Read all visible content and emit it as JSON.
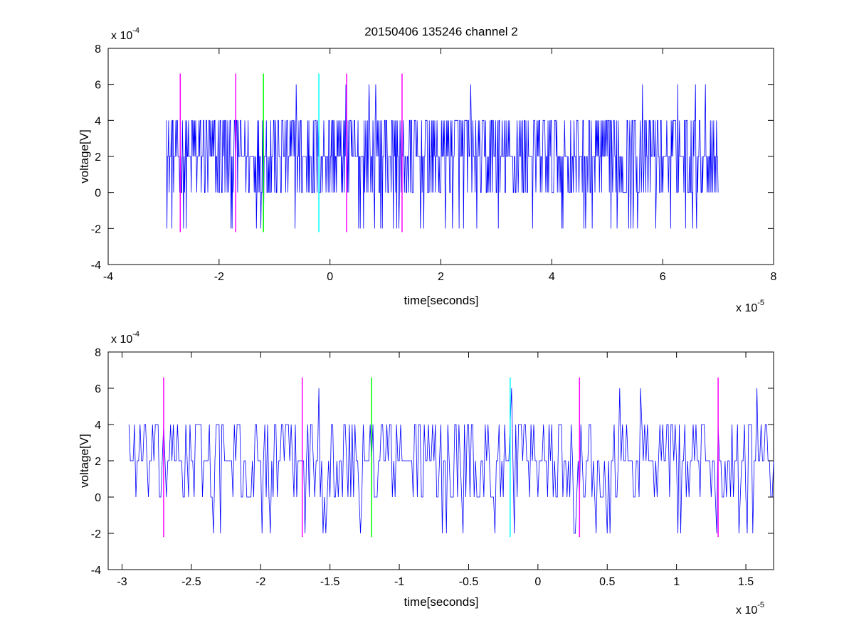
{
  "chart_data": [
    {
      "type": "line",
      "title": "20150406 135246 channel 2",
      "xlabel": "time[seconds]",
      "ylabel": "voltage[V]",
      "xlim": [
        -4e-05,
        8e-05
      ],
      "ylim": [
        -0.0004,
        0.0008
      ],
      "x_ticks": [
        -4e-05,
        -2e-05,
        0,
        2e-05,
        4e-05,
        6e-05,
        8e-05
      ],
      "x_tick_labels": [
        "-4",
        "-2",
        "0",
        "2",
        "4",
        "6",
        "8"
      ],
      "y_ticks": [
        -0.0004,
        -0.0002,
        0,
        0.0002,
        0.0004,
        0.0006,
        0.0008
      ],
      "y_tick_labels": [
        "-4",
        "-2",
        "0",
        "2",
        "4",
        "6",
        "8"
      ],
      "x_exponent_label": "x 10",
      "x_exponent": "-5",
      "y_exponent_label": "x 10",
      "y_exponent": "-4",
      "grid": false,
      "series": [
        {
          "color": "#0000ff",
          "x_range": [
            -2.95e-05,
            7e-05
          ],
          "quantization_step": 0.0002,
          "dominant_values": [
            0,
            0.0002,
            0.0004
          ],
          "occasional_values": [
            -0.0002,
            0.0006
          ],
          "samples": 1000
        }
      ],
      "markers": [
        {
          "x": -2.7e-05,
          "color": "#ff00ff",
          "y_range": [
            -0.00022,
            0.00066
          ]
        },
        {
          "x": -1.7e-05,
          "color": "#ff00ff",
          "y_range": [
            -0.00022,
            0.00066
          ]
        },
        {
          "x": -1.2e-05,
          "color": "#00ff00",
          "y_range": [
            -0.00022,
            0.00066
          ]
        },
        {
          "x": -2e-06,
          "color": "#00ffff",
          "y_range": [
            -0.00022,
            0.00066
          ]
        },
        {
          "x": 3e-06,
          "color": "#ff00ff",
          "y_range": [
            -0.00022,
            0.00066
          ]
        },
        {
          "x": 1.3e-05,
          "color": "#ff00ff",
          "y_range": [
            -0.00022,
            0.00066
          ]
        }
      ]
    },
    {
      "type": "line",
      "xlabel": "time[seconds]",
      "ylabel": "voltage[V]",
      "xlim": [
        -3.1e-05,
        1.7e-05
      ],
      "ylim": [
        -0.0004,
        0.0008
      ],
      "x_ticks": [
        -3e-05,
        -2.5e-05,
        -2e-05,
        -1.5e-05,
        -1e-05,
        -5e-06,
        0,
        5e-06,
        1e-05,
        1.5e-05
      ],
      "x_tick_labels": [
        "-3",
        "-2.5",
        "-2",
        "-1.5",
        "-1",
        "-0.5",
        "0",
        "0.5",
        "1",
        "1.5"
      ],
      "y_ticks": [
        -0.0004,
        -0.0002,
        0,
        0.0002,
        0.0004,
        0.0006,
        0.0008
      ],
      "y_tick_labels": [
        "-4",
        "-2",
        "0",
        "2",
        "4",
        "6",
        "8"
      ],
      "x_exponent_label": "x 10",
      "x_exponent": "-5",
      "y_exponent_label": "x 10",
      "y_exponent": "-4",
      "grid": false,
      "series": [
        {
          "color": "#0000ff",
          "x_range": [
            -2.95e-05,
            1.7e-05
          ],
          "quantization_step": 0.0002,
          "dominant_values": [
            0,
            0.0002,
            0.0004
          ],
          "occasional_values": [
            -0.0002,
            0.0006
          ],
          "samples": 466
        }
      ],
      "markers": [
        {
          "x": -2.7e-05,
          "color": "#ff00ff",
          "y_range": [
            -0.00022,
            0.00066
          ]
        },
        {
          "x": -1.7e-05,
          "color": "#ff00ff",
          "y_range": [
            -0.00022,
            0.00066
          ]
        },
        {
          "x": -1.2e-05,
          "color": "#00ff00",
          "y_range": [
            -0.00022,
            0.00066
          ]
        },
        {
          "x": -2e-06,
          "color": "#00ffff",
          "y_range": [
            -0.00022,
            0.00066
          ]
        },
        {
          "x": 3e-06,
          "color": "#ff00ff",
          "y_range": [
            -0.00022,
            0.00066
          ]
        },
        {
          "x": 1.3e-05,
          "color": "#ff00ff",
          "y_range": [
            -0.00022,
            0.00066
          ]
        }
      ]
    }
  ]
}
